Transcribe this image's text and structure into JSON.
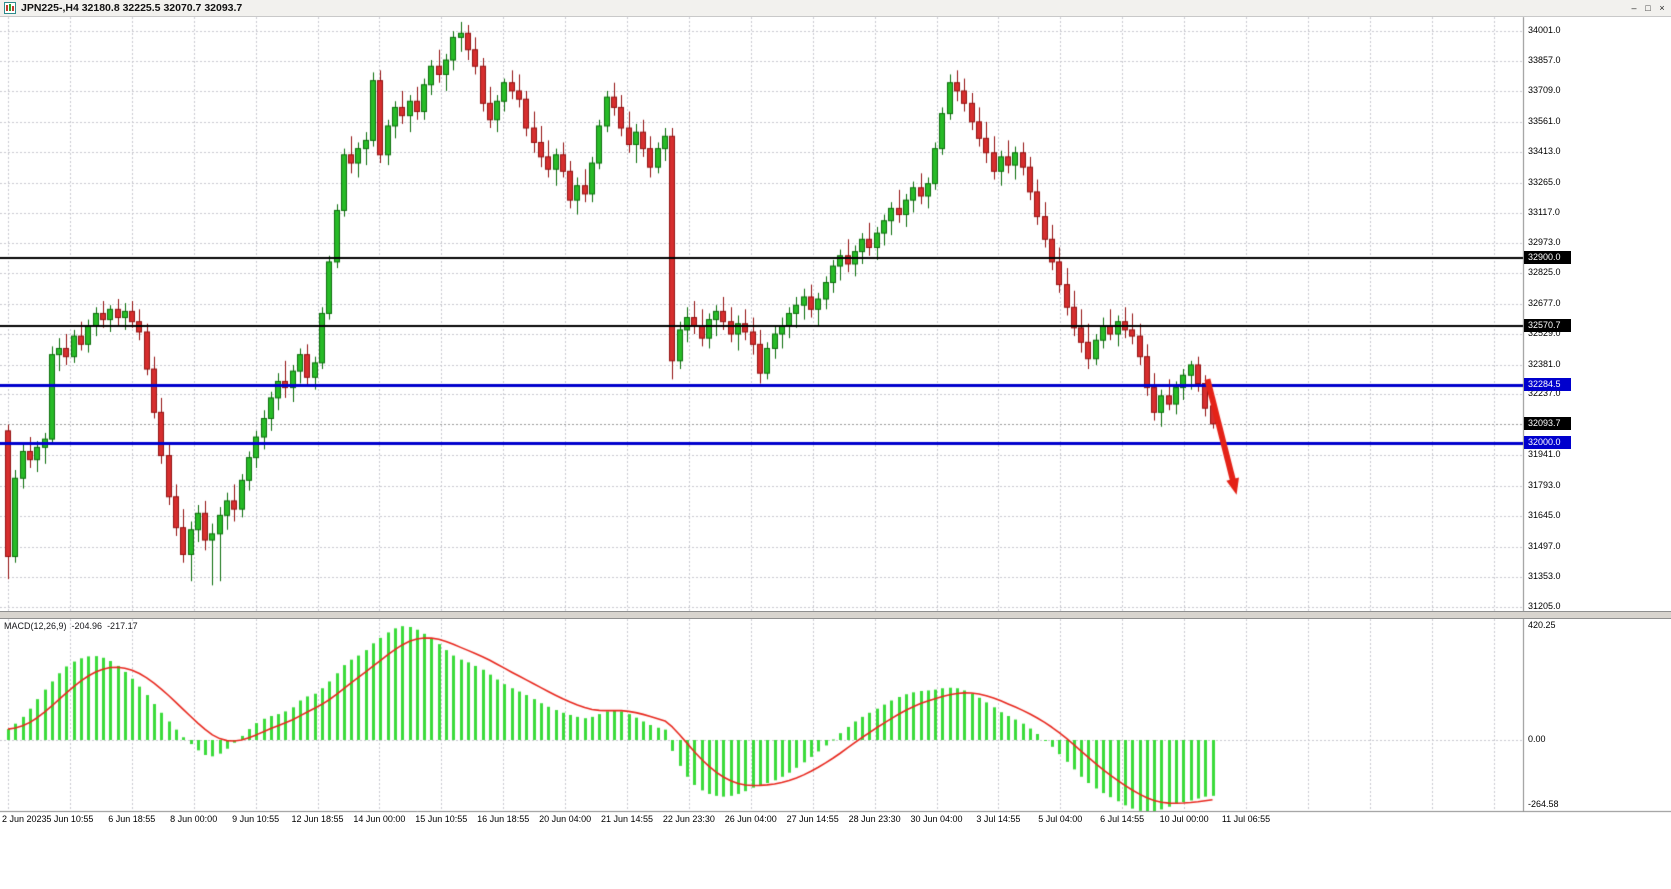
{
  "header": {
    "title": "JPN225-,H4  32180.8 32225.5 32070.7 32093.7",
    "window_controls": {
      "minimize_icon": "–",
      "restore_icon": "□",
      "close_icon": "×"
    }
  },
  "chart_data": {
    "type": "candlestick",
    "symbol": "JPN225-",
    "timeframe": "H4",
    "current_ohlc": {
      "open": 32180.8,
      "high": 32225.5,
      "low": 32070.7,
      "close": 32093.7
    },
    "grid": true,
    "price_axis": {
      "min": 31205.0,
      "max": 34001.0,
      "labels": [
        {
          "text": "34001.0",
          "value": 34001.0,
          "kind": "grid"
        },
        {
          "text": "33857.0",
          "value": 33857.0,
          "kind": "grid"
        },
        {
          "text": "33709.0",
          "value": 33709.0,
          "kind": "grid"
        },
        {
          "text": "33561.0",
          "value": 33561.0,
          "kind": "grid"
        },
        {
          "text": "33413.0",
          "value": 33413.0,
          "kind": "grid"
        },
        {
          "text": "33265.0",
          "value": 33265.0,
          "kind": "grid"
        },
        {
          "text": "33117.0",
          "value": 33117.0,
          "kind": "grid"
        },
        {
          "text": "32973.0",
          "value": 32973.0,
          "kind": "grid"
        },
        {
          "text": "32900.0",
          "value": 32900.0,
          "kind": "black"
        },
        {
          "text": "32825.0",
          "value": 32825.0,
          "kind": "grid"
        },
        {
          "text": "32677.0",
          "value": 32677.0,
          "kind": "grid"
        },
        {
          "text": "32570.7",
          "value": 32570.7,
          "kind": "black"
        },
        {
          "text": "32529.0",
          "value": 32529.0,
          "kind": "grid"
        },
        {
          "text": "32381.0",
          "value": 32381.0,
          "kind": "grid"
        },
        {
          "text": "32284.5",
          "value": 32284.5,
          "kind": "blue"
        },
        {
          "text": "32237.0",
          "value": 32237.0,
          "kind": "grid"
        },
        {
          "text": "32093.7",
          "value": 32093.7,
          "kind": "current"
        },
        {
          "text": "32000.0",
          "value": 32000.0,
          "kind": "blue"
        },
        {
          "text": "31941.0",
          "value": 31941.0,
          "kind": "grid"
        },
        {
          "text": "31793.0",
          "value": 31793.0,
          "kind": "grid"
        },
        {
          "text": "31645.0",
          "value": 31645.0,
          "kind": "grid"
        },
        {
          "text": "31497.0",
          "value": 31497.0,
          "kind": "grid"
        },
        {
          "text": "31353.0",
          "value": 31353.0,
          "kind": "grid"
        },
        {
          "text": "31205.0",
          "value": 31205.0,
          "kind": "grid"
        }
      ]
    },
    "time_axis": {
      "labels": [
        "2 Jun 2023",
        "5 Jun 10:55",
        "6 Jun 18:55",
        "8 Jun 00:00",
        "9 Jun 10:55",
        "12 Jun 18:55",
        "14 Jun 00:00",
        "15 Jun 10:55",
        "16 Jun 18:55",
        "20 Jun 04:00",
        "21 Jun 14:55",
        "22 Jun 23:30",
        "26 Jun 04:00",
        "27 Jun 14:55",
        "28 Jun 23:30",
        "30 Jun 04:00",
        "3 Jul 14:55",
        "5 Jul 04:00",
        "6 Jul 14:55",
        "10 Jul 00:00",
        "11 Jul 06:55"
      ]
    },
    "hlines": [
      {
        "value": 32900.0,
        "label": "32900.0",
        "color": "#000000",
        "width": 2
      },
      {
        "value": 32570.7,
        "label": "32570.7",
        "color": "#000000",
        "width": 2
      },
      {
        "value": 32284.5,
        "label": "32284.5",
        "color": "#0000cd",
        "width": 3
      },
      {
        "value": 32000.0,
        "label": "32000.0",
        "color": "#0000cd",
        "width": 3
      }
    ],
    "current_price": {
      "value": 32093.7,
      "label": "32093.7"
    },
    "arrow_annotation": {
      "from_bar": 164.3,
      "from_price": 32310,
      "to_bar": 168.3,
      "to_price": 31750,
      "color": "#e42217"
    },
    "candles": [
      [
        32060,
        32090,
        31340,
        31450
      ],
      [
        31450,
        31870,
        31420,
        31830
      ],
      [
        31830,
        32000,
        31780,
        31960
      ],
      [
        31960,
        32030,
        31880,
        31920
      ],
      [
        31920,
        32010,
        31860,
        31980
      ],
      [
        31980,
        32050,
        31900,
        32020
      ],
      [
        32020,
        32470,
        32000,
        32430
      ],
      [
        32430,
        32510,
        32350,
        32460
      ],
      [
        32460,
        32530,
        32380,
        32420
      ],
      [
        32420,
        32550,
        32390,
        32520
      ],
      [
        32520,
        32590,
        32450,
        32480
      ],
      [
        32480,
        32600,
        32440,
        32570
      ],
      [
        32570,
        32660,
        32520,
        32630
      ],
      [
        32630,
        32690,
        32560,
        32600
      ],
      [
        32600,
        32670,
        32540,
        32650
      ],
      [
        32650,
        32700,
        32570,
        32610
      ],
      [
        32610,
        32680,
        32550,
        32640
      ],
      [
        32640,
        32690,
        32560,
        32590
      ],
      [
        32590,
        32650,
        32500,
        32540
      ],
      [
        32540,
        32580,
        32330,
        32360
      ],
      [
        32360,
        32420,
        32120,
        32150
      ],
      [
        32150,
        32220,
        31900,
        31940
      ],
      [
        31940,
        32000,
        31700,
        31740
      ],
      [
        31740,
        31800,
        31550,
        31590
      ],
      [
        31590,
        31680,
        31420,
        31460
      ],
      [
        31460,
        31620,
        31330,
        31580
      ],
      [
        31580,
        31700,
        31520,
        31660
      ],
      [
        31660,
        31720,
        31480,
        31530
      ],
      [
        31530,
        31610,
        31310,
        31560
      ],
      [
        31560,
        31690,
        31330,
        31650
      ],
      [
        31650,
        31760,
        31580,
        31720
      ],
      [
        31720,
        31800,
        31620,
        31680
      ],
      [
        31680,
        31850,
        31640,
        31820
      ],
      [
        31820,
        31960,
        31770,
        31930
      ],
      [
        31930,
        32060,
        31880,
        32030
      ],
      [
        32030,
        32160,
        31970,
        32120
      ],
      [
        32120,
        32250,
        32060,
        32220
      ],
      [
        32220,
        32340,
        32160,
        32300
      ],
      [
        32300,
        32400,
        32220,
        32270
      ],
      [
        32270,
        32380,
        32200,
        32350
      ],
      [
        32350,
        32460,
        32290,
        32430
      ],
      [
        32430,
        32480,
        32280,
        32320
      ],
      [
        32320,
        32420,
        32260,
        32390
      ],
      [
        32390,
        32660,
        32360,
        32630
      ],
      [
        32630,
        32910,
        32600,
        32880
      ],
      [
        32880,
        33160,
        32850,
        33130
      ],
      [
        33130,
        33430,
        33100,
        33400
      ],
      [
        33400,
        33490,
        33310,
        33360
      ],
      [
        33360,
        33460,
        33290,
        33430
      ],
      [
        33430,
        33510,
        33350,
        33470
      ],
      [
        33470,
        33800,
        33440,
        33760
      ],
      [
        33760,
        33810,
        33360,
        33400
      ],
      [
        33400,
        33570,
        33350,
        33540
      ],
      [
        33540,
        33660,
        33480,
        33630
      ],
      [
        33630,
        33710,
        33550,
        33590
      ],
      [
        33590,
        33690,
        33510,
        33660
      ],
      [
        33660,
        33730,
        33570,
        33610
      ],
      [
        33610,
        33770,
        33570,
        33740
      ],
      [
        33740,
        33860,
        33690,
        33830
      ],
      [
        33830,
        33910,
        33750,
        33790
      ],
      [
        33790,
        33890,
        33710,
        33860
      ],
      [
        33860,
        34000,
        33810,
        33970
      ],
      [
        33970,
        34045,
        33900,
        33990
      ],
      [
        33990,
        34030,
        33860,
        33910
      ],
      [
        33910,
        33970,
        33790,
        33830
      ],
      [
        33830,
        33870,
        33610,
        33650
      ],
      [
        33650,
        33730,
        33530,
        33570
      ],
      [
        33570,
        33690,
        33510,
        33660
      ],
      [
        33660,
        33770,
        33610,
        33750
      ],
      [
        33750,
        33810,
        33670,
        33710
      ],
      [
        33710,
        33790,
        33630,
        33670
      ],
      [
        33670,
        33710,
        33490,
        33530
      ],
      [
        33530,
        33610,
        33410,
        33460
      ],
      [
        33460,
        33540,
        33340,
        33390
      ],
      [
        33390,
        33470,
        33290,
        33330
      ],
      [
        33330,
        33430,
        33250,
        33400
      ],
      [
        33400,
        33460,
        33290,
        33320
      ],
      [
        33320,
        33370,
        33140,
        33180
      ],
      [
        33180,
        33290,
        33110,
        33250
      ],
      [
        33250,
        33330,
        33170,
        33210
      ],
      [
        33210,
        33390,
        33170,
        33360
      ],
      [
        33360,
        33570,
        33330,
        33540
      ],
      [
        33540,
        33710,
        33510,
        33680
      ],
      [
        33680,
        33750,
        33590,
        33630
      ],
      [
        33630,
        33690,
        33490,
        33530
      ],
      [
        33530,
        33610,
        33410,
        33450
      ],
      [
        33450,
        33550,
        33360,
        33510
      ],
      [
        33510,
        33570,
        33390,
        33430
      ],
      [
        33430,
        33490,
        33290,
        33340
      ],
      [
        33340,
        33460,
        33310,
        33430
      ],
      [
        33430,
        33530,
        33370,
        33490
      ],
      [
        33490,
        33530,
        32310,
        32400
      ],
      [
        32400,
        32590,
        32360,
        32550
      ],
      [
        32550,
        32660,
        32490,
        32610
      ],
      [
        32610,
        32690,
        32530,
        32570
      ],
      [
        32570,
        32650,
        32470,
        32510
      ],
      [
        32510,
        32630,
        32460,
        32600
      ],
      [
        32600,
        32670,
        32520,
        32640
      ],
      [
        32640,
        32710,
        32550,
        32590
      ],
      [
        32590,
        32660,
        32490,
        32530
      ],
      [
        32530,
        32620,
        32450,
        32580
      ],
      [
        32580,
        32650,
        32500,
        32540
      ],
      [
        32540,
        32610,
        32430,
        32480
      ],
      [
        32480,
        32550,
        32290,
        32340
      ],
      [
        32340,
        32490,
        32310,
        32460
      ],
      [
        32460,
        32570,
        32410,
        32530
      ],
      [
        32530,
        32610,
        32460,
        32570
      ],
      [
        32570,
        32660,
        32510,
        32630
      ],
      [
        32630,
        32710,
        32560,
        32670
      ],
      [
        32670,
        32750,
        32600,
        32710
      ],
      [
        32710,
        32770,
        32610,
        32650
      ],
      [
        32650,
        32730,
        32570,
        32700
      ],
      [
        32700,
        32810,
        32650,
        32780
      ],
      [
        32780,
        32890,
        32730,
        32860
      ],
      [
        32860,
        32940,
        32790,
        32910
      ],
      [
        32910,
        32990,
        32830,
        32870
      ],
      [
        32870,
        32960,
        32810,
        32930
      ],
      [
        32930,
        33020,
        32870,
        32990
      ],
      [
        32990,
        33070,
        32910,
        32950
      ],
      [
        32950,
        33050,
        32890,
        33020
      ],
      [
        33020,
        33110,
        32960,
        33080
      ],
      [
        33080,
        33170,
        33010,
        33140
      ],
      [
        33140,
        33230,
        33070,
        33110
      ],
      [
        33110,
        33210,
        33050,
        33180
      ],
      [
        33180,
        33270,
        33120,
        33240
      ],
      [
        33240,
        33310,
        33160,
        33200
      ],
      [
        33200,
        33290,
        33140,
        33260
      ],
      [
        33260,
        33460,
        33230,
        33430
      ],
      [
        33430,
        33630,
        33400,
        33600
      ],
      [
        33600,
        33790,
        33570,
        33750
      ],
      [
        33750,
        33810,
        33660,
        33710
      ],
      [
        33710,
        33770,
        33610,
        33650
      ],
      [
        33650,
        33700,
        33520,
        33560
      ],
      [
        33560,
        33630,
        33440,
        33480
      ],
      [
        33480,
        33560,
        33360,
        33410
      ],
      [
        33410,
        33490,
        33280,
        33320
      ],
      [
        33320,
        33420,
        33250,
        33390
      ],
      [
        33390,
        33470,
        33310,
        33350
      ],
      [
        33350,
        33440,
        33280,
        33410
      ],
      [
        33410,
        33460,
        33300,
        33340
      ],
      [
        33340,
        33390,
        33180,
        33220
      ],
      [
        33220,
        33280,
        33060,
        33100
      ],
      [
        33100,
        33170,
        32950,
        32990
      ],
      [
        32990,
        33060,
        32840,
        32880
      ],
      [
        32880,
        32950,
        32730,
        32770
      ],
      [
        32770,
        32850,
        32620,
        32660
      ],
      [
        32660,
        32740,
        32520,
        32560
      ],
      [
        32560,
        32650,
        32440,
        32490
      ],
      [
        32490,
        32580,
        32360,
        32410
      ],
      [
        32410,
        32530,
        32380,
        32500
      ],
      [
        32500,
        32610,
        32460,
        32570
      ],
      [
        32570,
        32650,
        32500,
        32530
      ],
      [
        32530,
        32620,
        32470,
        32590
      ],
      [
        32590,
        32660,
        32510,
        32550
      ],
      [
        32550,
        32630,
        32480,
        32520
      ],
      [
        32520,
        32580,
        32380,
        32420
      ],
      [
        32420,
        32480,
        32230,
        32270
      ],
      [
        32270,
        32340,
        32110,
        32150
      ],
      [
        32150,
        32260,
        32080,
        32230
      ],
      [
        32230,
        32310,
        32160,
        32190
      ],
      [
        32190,
        32300,
        32140,
        32270
      ],
      [
        32270,
        32360,
        32210,
        32330
      ],
      [
        32330,
        32400,
        32260,
        32380
      ],
      [
        32380,
        32420,
        32250,
        32290
      ],
      [
        32290,
        32330,
        32130,
        32170
      ],
      [
        32181,
        32226,
        32071,
        32094
      ]
    ],
    "macd": {
      "label": "MACD(12,26,9)",
      "periods": [
        12,
        26,
        9
      ],
      "value_main": "-204.96",
      "value_signal": "-217.17",
      "axis_labels": [
        {
          "text": "420.25",
          "value": 420.25
        },
        {
          "text": "0.00",
          "value": 0
        },
        {
          "text": "-264.58",
          "value": -264.58
        }
      ],
      "signal_ema_period": 9,
      "histogram_color": "#3bdb3b",
      "signal_color": "#e8281e",
      "histogram": [
        40,
        60,
        85,
        115,
        150,
        185,
        215,
        245,
        270,
        288,
        300,
        307,
        308,
        302,
        290,
        272,
        250,
        225,
        196,
        165,
        132,
        100,
        68,
        38,
        10,
        -15,
        -38,
        -55,
        -60,
        -50,
        -32,
        -10,
        15,
        40,
        62,
        78,
        88,
        95,
        105,
        120,
        145,
        160,
        170,
        190,
        215,
        245,
        275,
        295,
        310,
        330,
        355,
        375,
        395,
        410,
        418,
        415,
        405,
        390,
        372,
        352,
        330,
        310,
        295,
        285,
        272,
        258,
        240,
        222,
        205,
        190,
        178,
        165,
        150,
        135,
        122,
        110,
        100,
        92,
        85,
        80,
        85,
        95,
        105,
        110,
        105,
        95,
        82,
        68,
        55,
        45,
        38,
        -40,
        -95,
        -135,
        -165,
        -185,
        -198,
        -205,
        -208,
        -205,
        -198,
        -188,
        -175,
        -165,
        -158,
        -148,
        -135,
        -120,
        -102,
        -82,
        -62,
        -42,
        -20,
        2,
        25,
        48,
        68,
        85,
        100,
        115,
        130,
        145,
        158,
        168,
        175,
        180,
        182,
        185,
        190,
        192,
        190,
        182,
        170,
        155,
        138,
        120,
        102,
        88,
        75,
        60,
        42,
        22,
        0,
        -25,
        -52,
        -80,
        -108,
        -135,
        -158,
        -178,
        -195,
        -210,
        -225,
        -240,
        -252,
        -260,
        -264,
        -262,
        -255,
        -245,
        -235,
        -228,
        -222,
        -215,
        -208,
        -205
      ]
    },
    "colors": {
      "background": "#ffffff",
      "grid": "#c9c9cf",
      "bull": "#27bb27",
      "bull_border": "#0b6e0b",
      "bear": "#d62e2e",
      "bear_border": "#931111",
      "hline_blue": "#0000cd",
      "axis_text": "#000000"
    }
  }
}
